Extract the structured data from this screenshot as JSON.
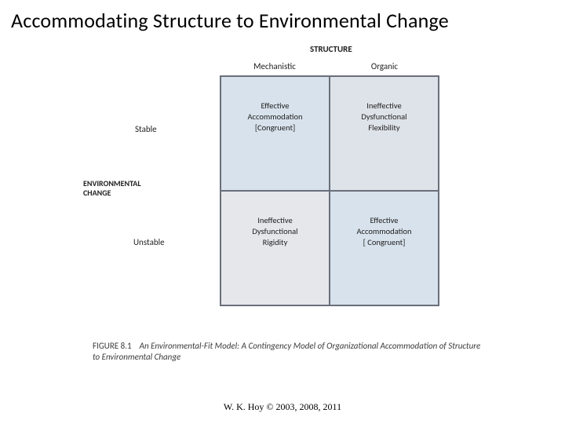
{
  "title": "Accommodating Structure to Environmental Change",
  "diagram": {
    "type": "matrix-2x2",
    "top_axis_label": "STRUCTURE",
    "left_axis_label": "ENVIRONMENTAL\nCHANGE",
    "columns": [
      "Mechanistic",
      "Organic"
    ],
    "rows": [
      "Stable",
      "Unstable"
    ],
    "cells": {
      "tl": {
        "line1": "Effective",
        "line2": "Accommodation",
        "line3": "[Congruent]",
        "bg": "#d7e2ec"
      },
      "tr": {
        "line1": "Ineffective",
        "line2": "Dysfunctional",
        "line3": "Flexibility",
        "bg": "#dee3e9"
      },
      "bl": {
        "line1": "Ineffective",
        "line2": "Dysfunctional",
        "line3": "Rigidity",
        "bg": "#e5e7ea"
      },
      "br": {
        "line1": "Effective",
        "line2": "Accommodation",
        "line3": "[ Congruent]",
        "bg": "#d7e2ec"
      }
    },
    "border_color": "#6a6f7a",
    "cell_font_size": 10.5,
    "label_font_size": 11,
    "axis_label_font_size": 10
  },
  "caption": {
    "figure_number": "FIGURE 8.1",
    "text": "An Environmental-Fit Model: A Contingency Model of Organizational Accommodation of Structure to Environmental Change"
  },
  "footer": "W. K. Hoy © 2003, 2008, 2011",
  "colors": {
    "background": "#ffffff",
    "text": "#000000",
    "muted_text": "#3a3a3a"
  }
}
